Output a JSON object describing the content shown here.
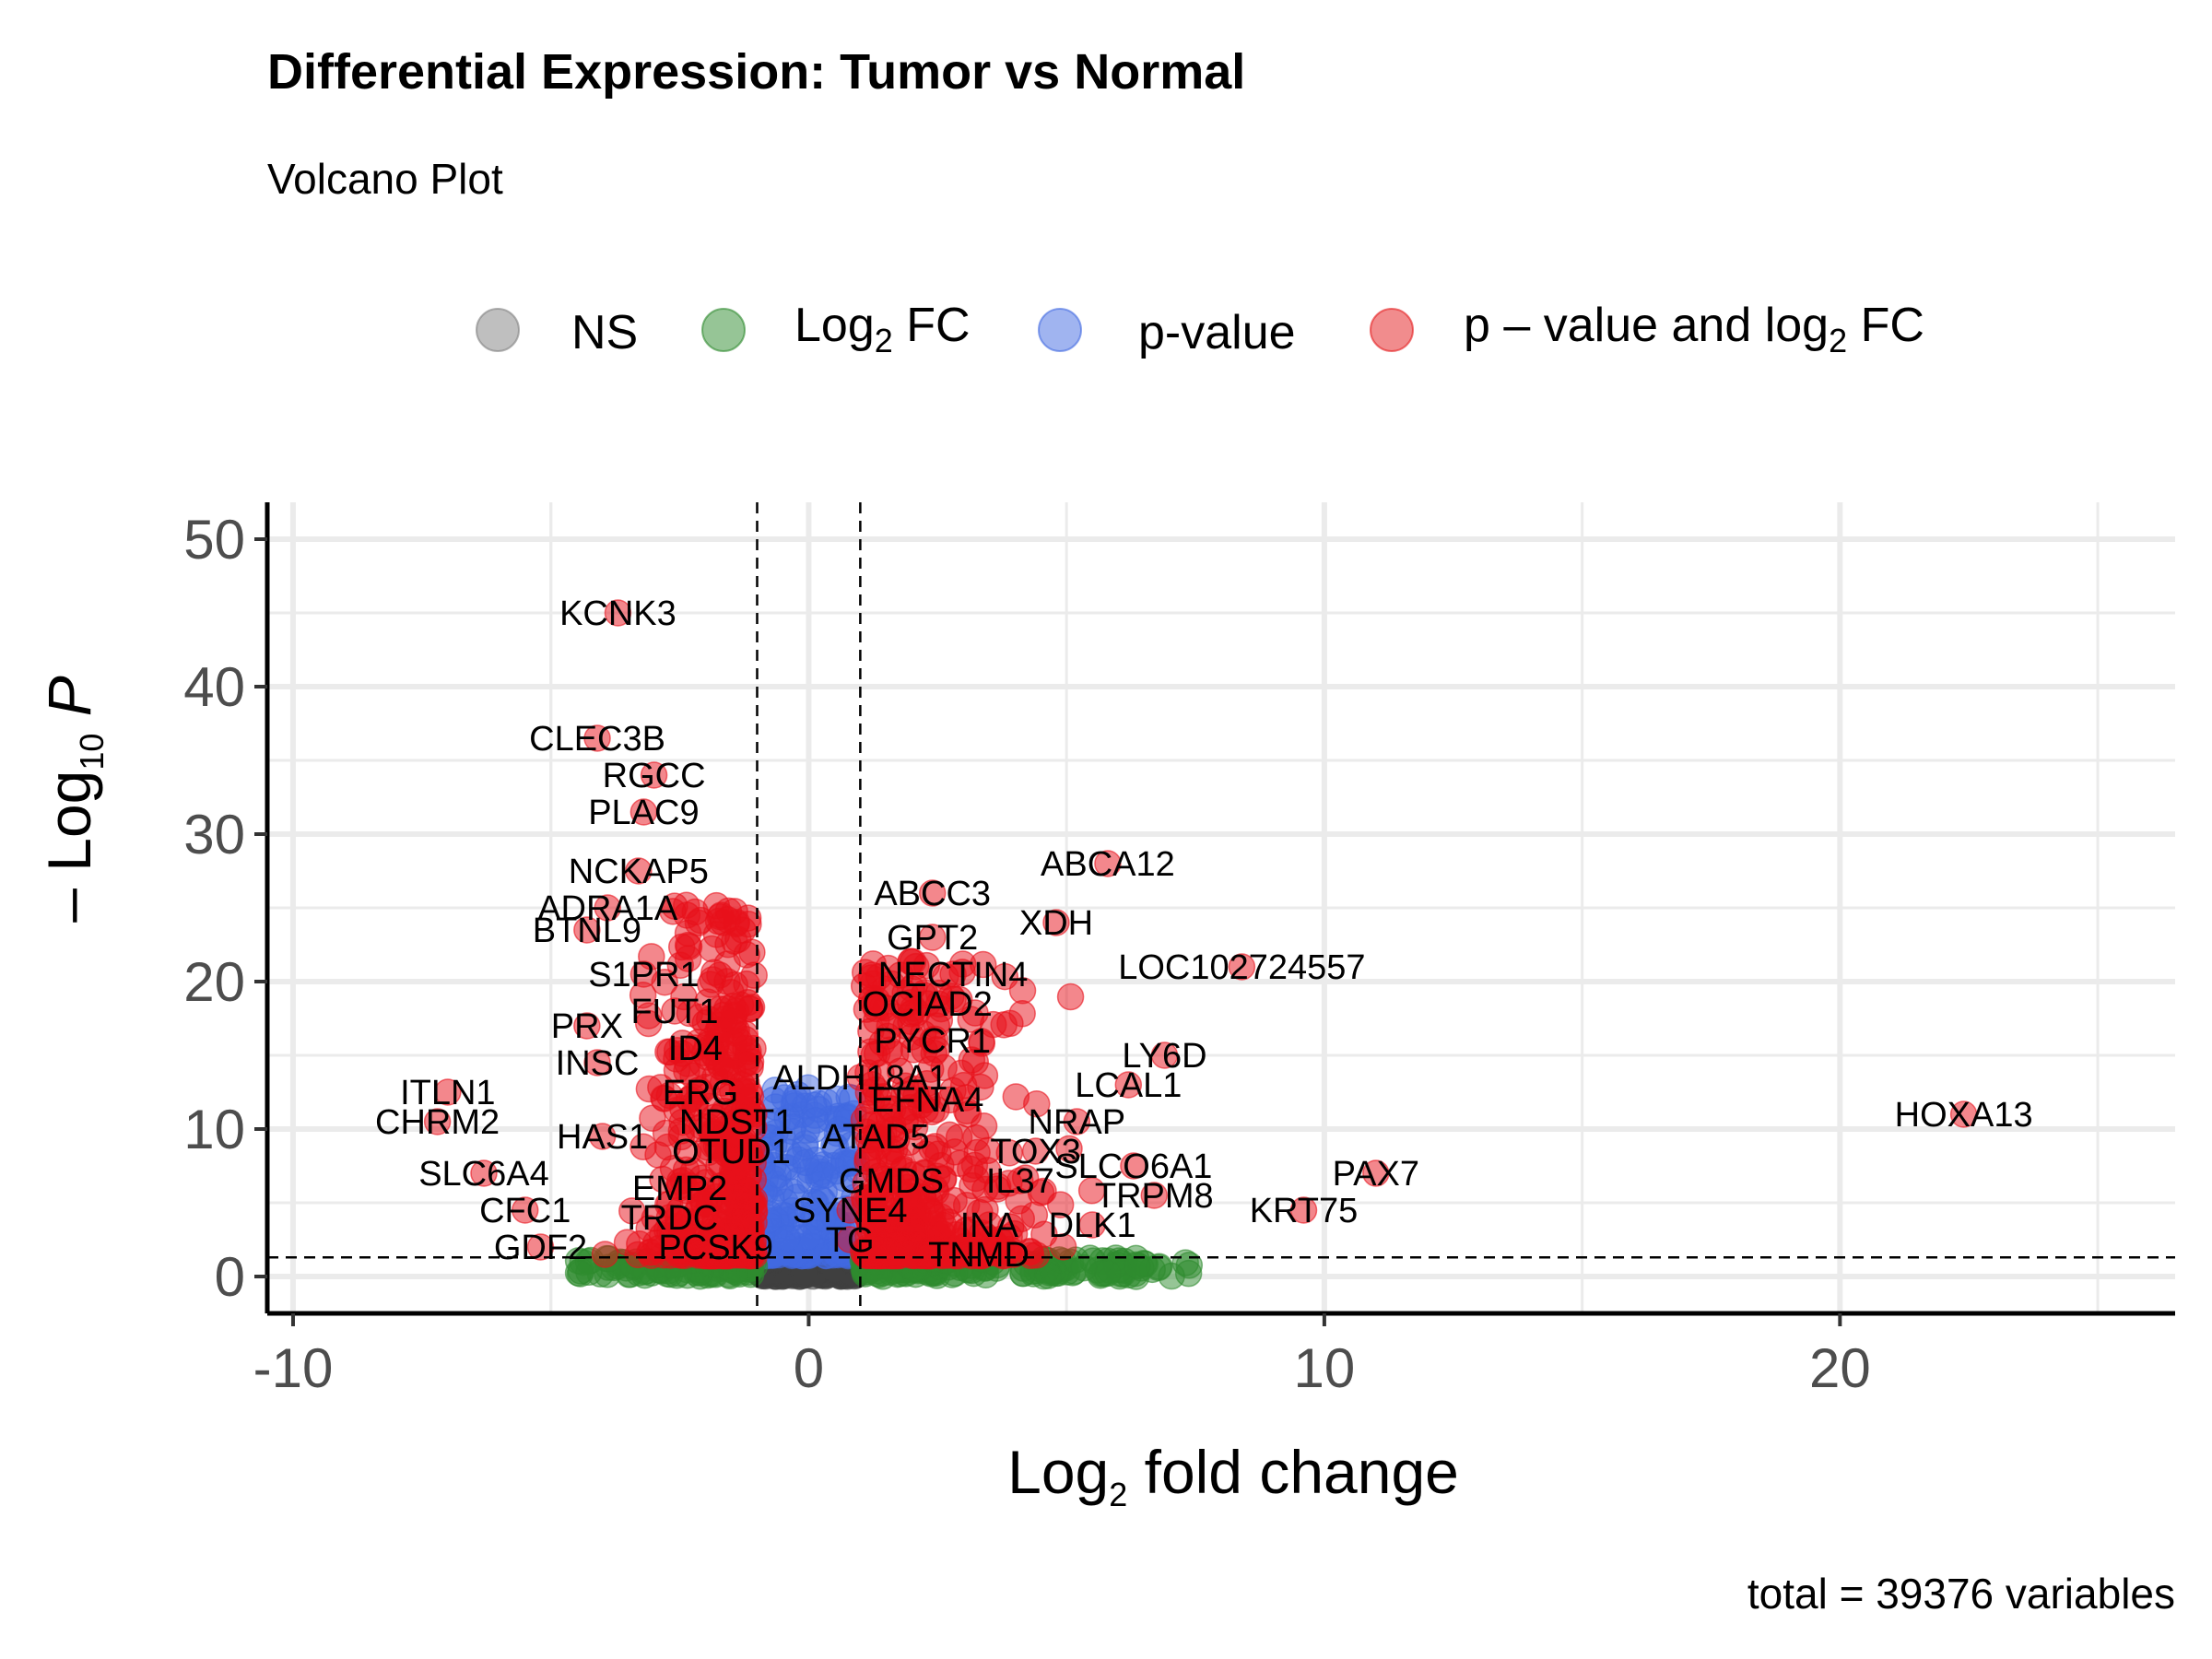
{
  "chart_data": {
    "type": "scatter",
    "title": "Differential Expression: Tumor vs Normal",
    "subtitle": "Volcano Plot",
    "caption": "total = 39376 variables",
    "xlabel": {
      "prefix": "Log",
      "sub": "2",
      "suffix": " fold change"
    },
    "ylabel": {
      "prefix": "– Log",
      "sub": "10",
      "suffix": "P"
    },
    "xlim": [
      -10.5,
      26.5
    ],
    "ylim": [
      -2.5,
      52.5
    ],
    "x_ticks": [
      -10,
      0,
      10,
      20
    ],
    "x_tick_labels": [
      "-10",
      "0",
      "10",
      "20"
    ],
    "y_ticks": [
      0,
      10,
      20,
      30,
      40,
      50
    ],
    "y_tick_labels": [
      "0",
      "10",
      "20",
      "30",
      "40",
      "50"
    ],
    "grid": true,
    "legend_position": "top",
    "cutoffs": {
      "fc": 1,
      "p_log10": 1.3
    },
    "legend": [
      {
        "key": "ns",
        "label": "NS",
        "color": "#808080"
      },
      {
        "key": "fc",
        "label_prefix": "Log",
        "label_sub": "2",
        "label_suffix": " FC",
        "color": "#2e8b2e"
      },
      {
        "key": "p",
        "label": "p-value",
        "color": "#4169e1"
      },
      {
        "key": "both",
        "label_prefix": "p – value and log",
        "label_sub": "2",
        "label_suffix": " FC",
        "color": "#e41a1c"
      }
    ],
    "colors": {
      "ns": "#404040",
      "fc": "#2e8b2e",
      "p": "#4169e1",
      "both": "#e8101a"
    },
    "labeled_genes": [
      {
        "gene": "KCNK3",
        "x": -3.7,
        "y": 45
      },
      {
        "gene": "CLEC3B",
        "x": -4.1,
        "y": 36.5
      },
      {
        "gene": "RGCC",
        "x": -3.0,
        "y": 34
      },
      {
        "gene": "PLAC9",
        "x": -3.2,
        "y": 31.5
      },
      {
        "gene": "NCKAP5",
        "x": -3.3,
        "y": 27.5
      },
      {
        "gene": "ADRA1A",
        "x": -3.9,
        "y": 25
      },
      {
        "gene": "BTNL9",
        "x": -4.3,
        "y": 23.5
      },
      {
        "gene": "S1PR1",
        "x": -3.2,
        "y": 20.5
      },
      {
        "gene": "FUT1",
        "x": -2.6,
        "y": 18
      },
      {
        "gene": "PRX",
        "x": -4.3,
        "y": 17
      },
      {
        "gene": "INSC",
        "x": -4.1,
        "y": 14.5
      },
      {
        "gene": "ID4",
        "x": -2.2,
        "y": 15.5
      },
      {
        "gene": "ITLN1",
        "x": -7.0,
        "y": 12.5
      },
      {
        "gene": "ERG",
        "x": -2.1,
        "y": 12.5
      },
      {
        "gene": "ALDH18A1",
        "x": 1.0,
        "y": 13.5
      },
      {
        "gene": "CHRM2",
        "x": -7.2,
        "y": 10.5
      },
      {
        "gene": "HAS1",
        "x": -4.0,
        "y": 9.5
      },
      {
        "gene": "NDST1",
        "x": -1.4,
        "y": 10.5
      },
      {
        "gene": "EFNA4",
        "x": 2.3,
        "y": 12
      },
      {
        "gene": "OTUD1",
        "x": -1.5,
        "y": 8.5
      },
      {
        "gene": "ATAD5",
        "x": 1.3,
        "y": 9.5
      },
      {
        "gene": "SLC6A4",
        "x": -6.3,
        "y": 7
      },
      {
        "gene": "EMP2",
        "x": -2.5,
        "y": 6
      },
      {
        "gene": "GMDS",
        "x": 1.6,
        "y": 6.5
      },
      {
        "gene": "CFC1",
        "x": -5.5,
        "y": 4.5
      },
      {
        "gene": "SYNE4",
        "x": 0.8,
        "y": 4.5
      },
      {
        "gene": "TRDC",
        "x": -2.7,
        "y": 4
      },
      {
        "gene": "GDF2",
        "x": -5.2,
        "y": 2
      },
      {
        "gene": "PCSK9",
        "x": -1.8,
        "y": 2
      },
      {
        "gene": "TG",
        "x": 0.8,
        "y": 2.5
      },
      {
        "gene": "TNMD",
        "x": 3.3,
        "y": 1.5
      },
      {
        "gene": "ABCA12",
        "x": 5.8,
        "y": 28
      },
      {
        "gene": "ABCC3",
        "x": 2.4,
        "y": 26
      },
      {
        "gene": "XDH",
        "x": 4.8,
        "y": 24
      },
      {
        "gene": "GPT2",
        "x": 2.4,
        "y": 23
      },
      {
        "gene": "NECTIN4",
        "x": 2.8,
        "y": 20.5
      },
      {
        "gene": "LOC102724557",
        "x": 8.4,
        "y": 21
      },
      {
        "gene": "OCIAD2",
        "x": 2.3,
        "y": 18.5
      },
      {
        "gene": "PYCR1",
        "x": 2.4,
        "y": 16
      },
      {
        "gene": "LY6D",
        "x": 6.9,
        "y": 15
      },
      {
        "gene": "LCAL1",
        "x": 6.2,
        "y": 13
      },
      {
        "gene": "NRAP",
        "x": 5.2,
        "y": 10.5
      },
      {
        "gene": "TOX3",
        "x": 4.4,
        "y": 8.5
      },
      {
        "gene": "SLCO6A1",
        "x": 6.3,
        "y": 7.5
      },
      {
        "gene": "IL37",
        "x": 4.1,
        "y": 6.5
      },
      {
        "gene": "PAX7",
        "x": 11.0,
        "y": 7
      },
      {
        "gene": "TRPM8",
        "x": 6.7,
        "y": 5.5
      },
      {
        "gene": "KRT75",
        "x": 9.6,
        "y": 4.5
      },
      {
        "gene": "INA",
        "x": 3.5,
        "y": 3.5
      },
      {
        "gene": "DLK1",
        "x": 5.5,
        "y": 3.5
      },
      {
        "gene": "HOXA13",
        "x": 22.4,
        "y": 11
      }
    ]
  }
}
